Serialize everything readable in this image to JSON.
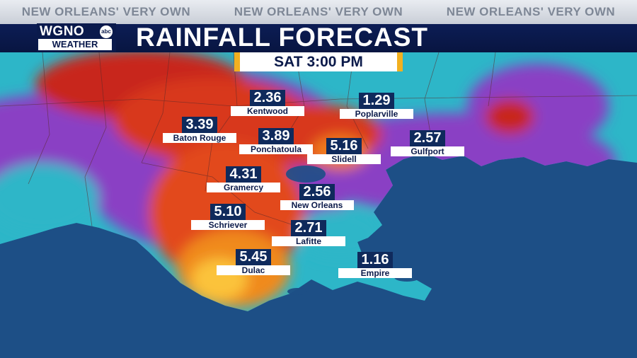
{
  "ticker": [
    "NEW ORLEANS' VERY OWN",
    "NEW ORLEANS' VERY OWN",
    "NEW ORLEANS' VERY OWN"
  ],
  "logo": {
    "station": "WGNO",
    "network": "abc",
    "sub": "WEATHER"
  },
  "title": "RAINFALL FORECAST",
  "time": "SAT   3:00 PM",
  "colors": {
    "header": "#0b1c52",
    "accent": "#f2b020",
    "water": "#1d4f86",
    "label_bg": "#0f2a5c"
  },
  "locations": [
    {
      "name": "Kentwood",
      "value": "2.36"
    },
    {
      "name": "Poplarville",
      "value": "1.29"
    },
    {
      "name": "Baton Rouge",
      "value": "3.39"
    },
    {
      "name": "Ponchatoula",
      "value": "3.89"
    },
    {
      "name": "Slidell",
      "value": "5.16"
    },
    {
      "name": "Gulfport",
      "value": "2.57"
    },
    {
      "name": "Gramercy",
      "value": "4.31"
    },
    {
      "name": "New Orleans",
      "value": "2.56"
    },
    {
      "name": "Schriever",
      "value": "5.10"
    },
    {
      "name": "Lafitte",
      "value": "2.71"
    },
    {
      "name": "Dulac",
      "value": "5.45"
    },
    {
      "name": "Empire",
      "value": "1.16"
    }
  ]
}
